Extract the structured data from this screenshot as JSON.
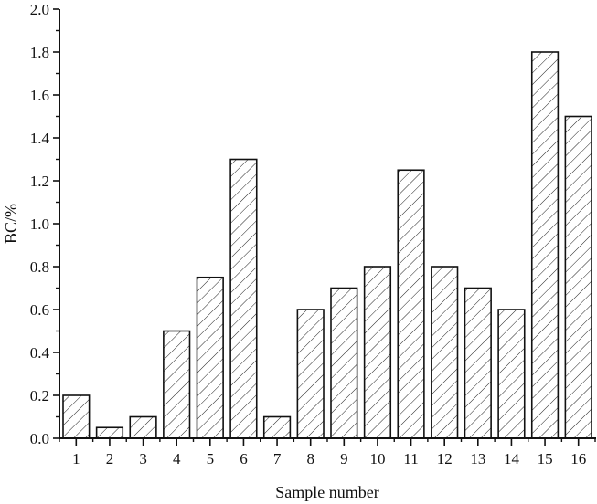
{
  "chart_data": {
    "type": "bar",
    "title": "",
    "xlabel": "Sample number",
    "ylabel": "BC/%",
    "categories": [
      "1",
      "2",
      "3",
      "4",
      "5",
      "6",
      "7",
      "8",
      "9",
      "10",
      "11",
      "12",
      "13",
      "14",
      "15",
      "16"
    ],
    "values": [
      0.2,
      0.05,
      0.1,
      0.5,
      0.75,
      1.3,
      0.1,
      0.6,
      0.7,
      0.8,
      1.25,
      0.8,
      0.7,
      0.6,
      1.8,
      1.5
    ],
    "ylim": [
      0,
      2.0
    ],
    "yticks": [
      "0.0",
      "0.2",
      "0.4",
      "0.6",
      "0.8",
      "1.0",
      "1.2",
      "1.4",
      "1.6",
      "1.8",
      "2.0"
    ],
    "grid": false,
    "legend": null,
    "bar_fill": "hatched (forward diagonal)",
    "colors": {
      "bar_edge": "#111111",
      "hatch": "#222222",
      "background": "#ffffff"
    }
  }
}
